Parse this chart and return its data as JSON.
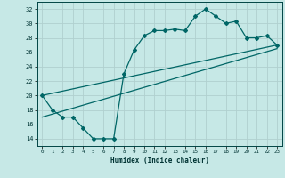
{
  "title": "",
  "xlabel": "Humidex (Indice chaleur)",
  "ylabel": "",
  "bg_color": "#c6e8e6",
  "grid_color": "#b0d0cf",
  "line_color": "#006666",
  "xlim": [
    -0.5,
    23.5
  ],
  "ylim": [
    13,
    33
  ],
  "yticks": [
    14,
    16,
    18,
    20,
    22,
    24,
    26,
    28,
    30,
    32
  ],
  "xticks": [
    0,
    1,
    2,
    3,
    4,
    5,
    6,
    7,
    8,
    9,
    10,
    11,
    12,
    13,
    14,
    15,
    16,
    17,
    18,
    19,
    20,
    21,
    22,
    23
  ],
  "curve1_x": [
    0,
    1,
    2,
    3,
    4,
    5,
    6,
    7,
    8,
    9,
    10,
    11,
    12,
    13,
    14,
    15,
    16,
    17,
    18,
    19,
    20,
    21,
    22,
    23
  ],
  "curve1_y": [
    20,
    18,
    17,
    17,
    15.5,
    14,
    14,
    14,
    23,
    26.3,
    28.3,
    29,
    29,
    29.2,
    29,
    31,
    32,
    31,
    30,
    30.3,
    28,
    28,
    28.3,
    27
  ],
  "line2_x": [
    0,
    23
  ],
  "line2_y": [
    20,
    27
  ],
  "line3_x": [
    0,
    23
  ],
  "line3_y": [
    17,
    26.5
  ]
}
